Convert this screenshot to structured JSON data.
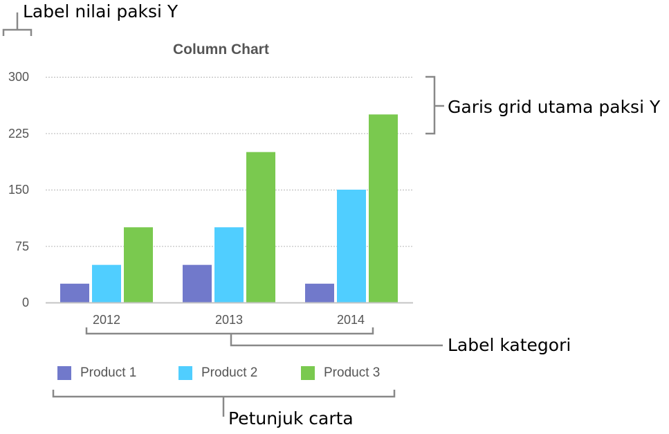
{
  "chart_data": {
    "type": "bar",
    "title": "Column Chart",
    "categories": [
      "2012",
      "2013",
      "2014"
    ],
    "series": [
      {
        "name": "Product 1",
        "color": "#7179CB",
        "values": [
          25,
          50,
          25
        ]
      },
      {
        "name": "Product 2",
        "color": "#50CEFF",
        "values": [
          50,
          100,
          150
        ]
      },
      {
        "name": "Product 3",
        "color": "#7AC94F",
        "values": [
          100,
          200,
          250
        ]
      }
    ],
    "xlabel": "",
    "ylabel": "",
    "ylim": [
      0,
      300
    ],
    "yticks": [
      "300",
      "225",
      "150",
      "75",
      "0"
    ],
    "grid": true,
    "legend_position": "bottom"
  },
  "annotations": {
    "y_value_label": "Label nilai paksi Y",
    "y_major_gridlines": "Garis grid utama paksi Y",
    "category_labels": "Label kategori",
    "legend": "Petunjuk carta"
  }
}
